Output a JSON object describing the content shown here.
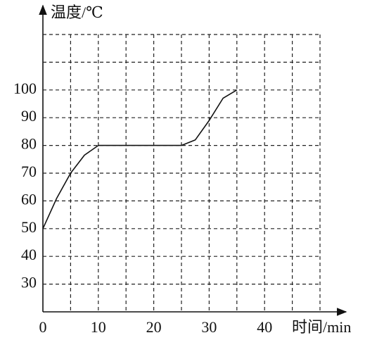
{
  "chart_data": {
    "type": "line",
    "y_label": "温度/℃",
    "x_label": "时间/min",
    "x": [
      0,
      2.5,
      5,
      7.5,
      10,
      15,
      20,
      25,
      27.5,
      30,
      32.5,
      35
    ],
    "series": [
      {
        "color": "#111111",
        "values": [
          50,
          61,
          70,
          76.5,
          80,
          80,
          80,
          80,
          82,
          89,
          97,
          100
        ]
      }
    ],
    "xlim": [
      0,
      50
    ],
    "xticks": [
      0,
      10,
      20,
      30,
      40
    ],
    "ylim": [
      20,
      120
    ],
    "yticks": [
      30,
      40,
      50,
      60,
      70,
      80,
      90,
      100
    ],
    "grid": true
  }
}
